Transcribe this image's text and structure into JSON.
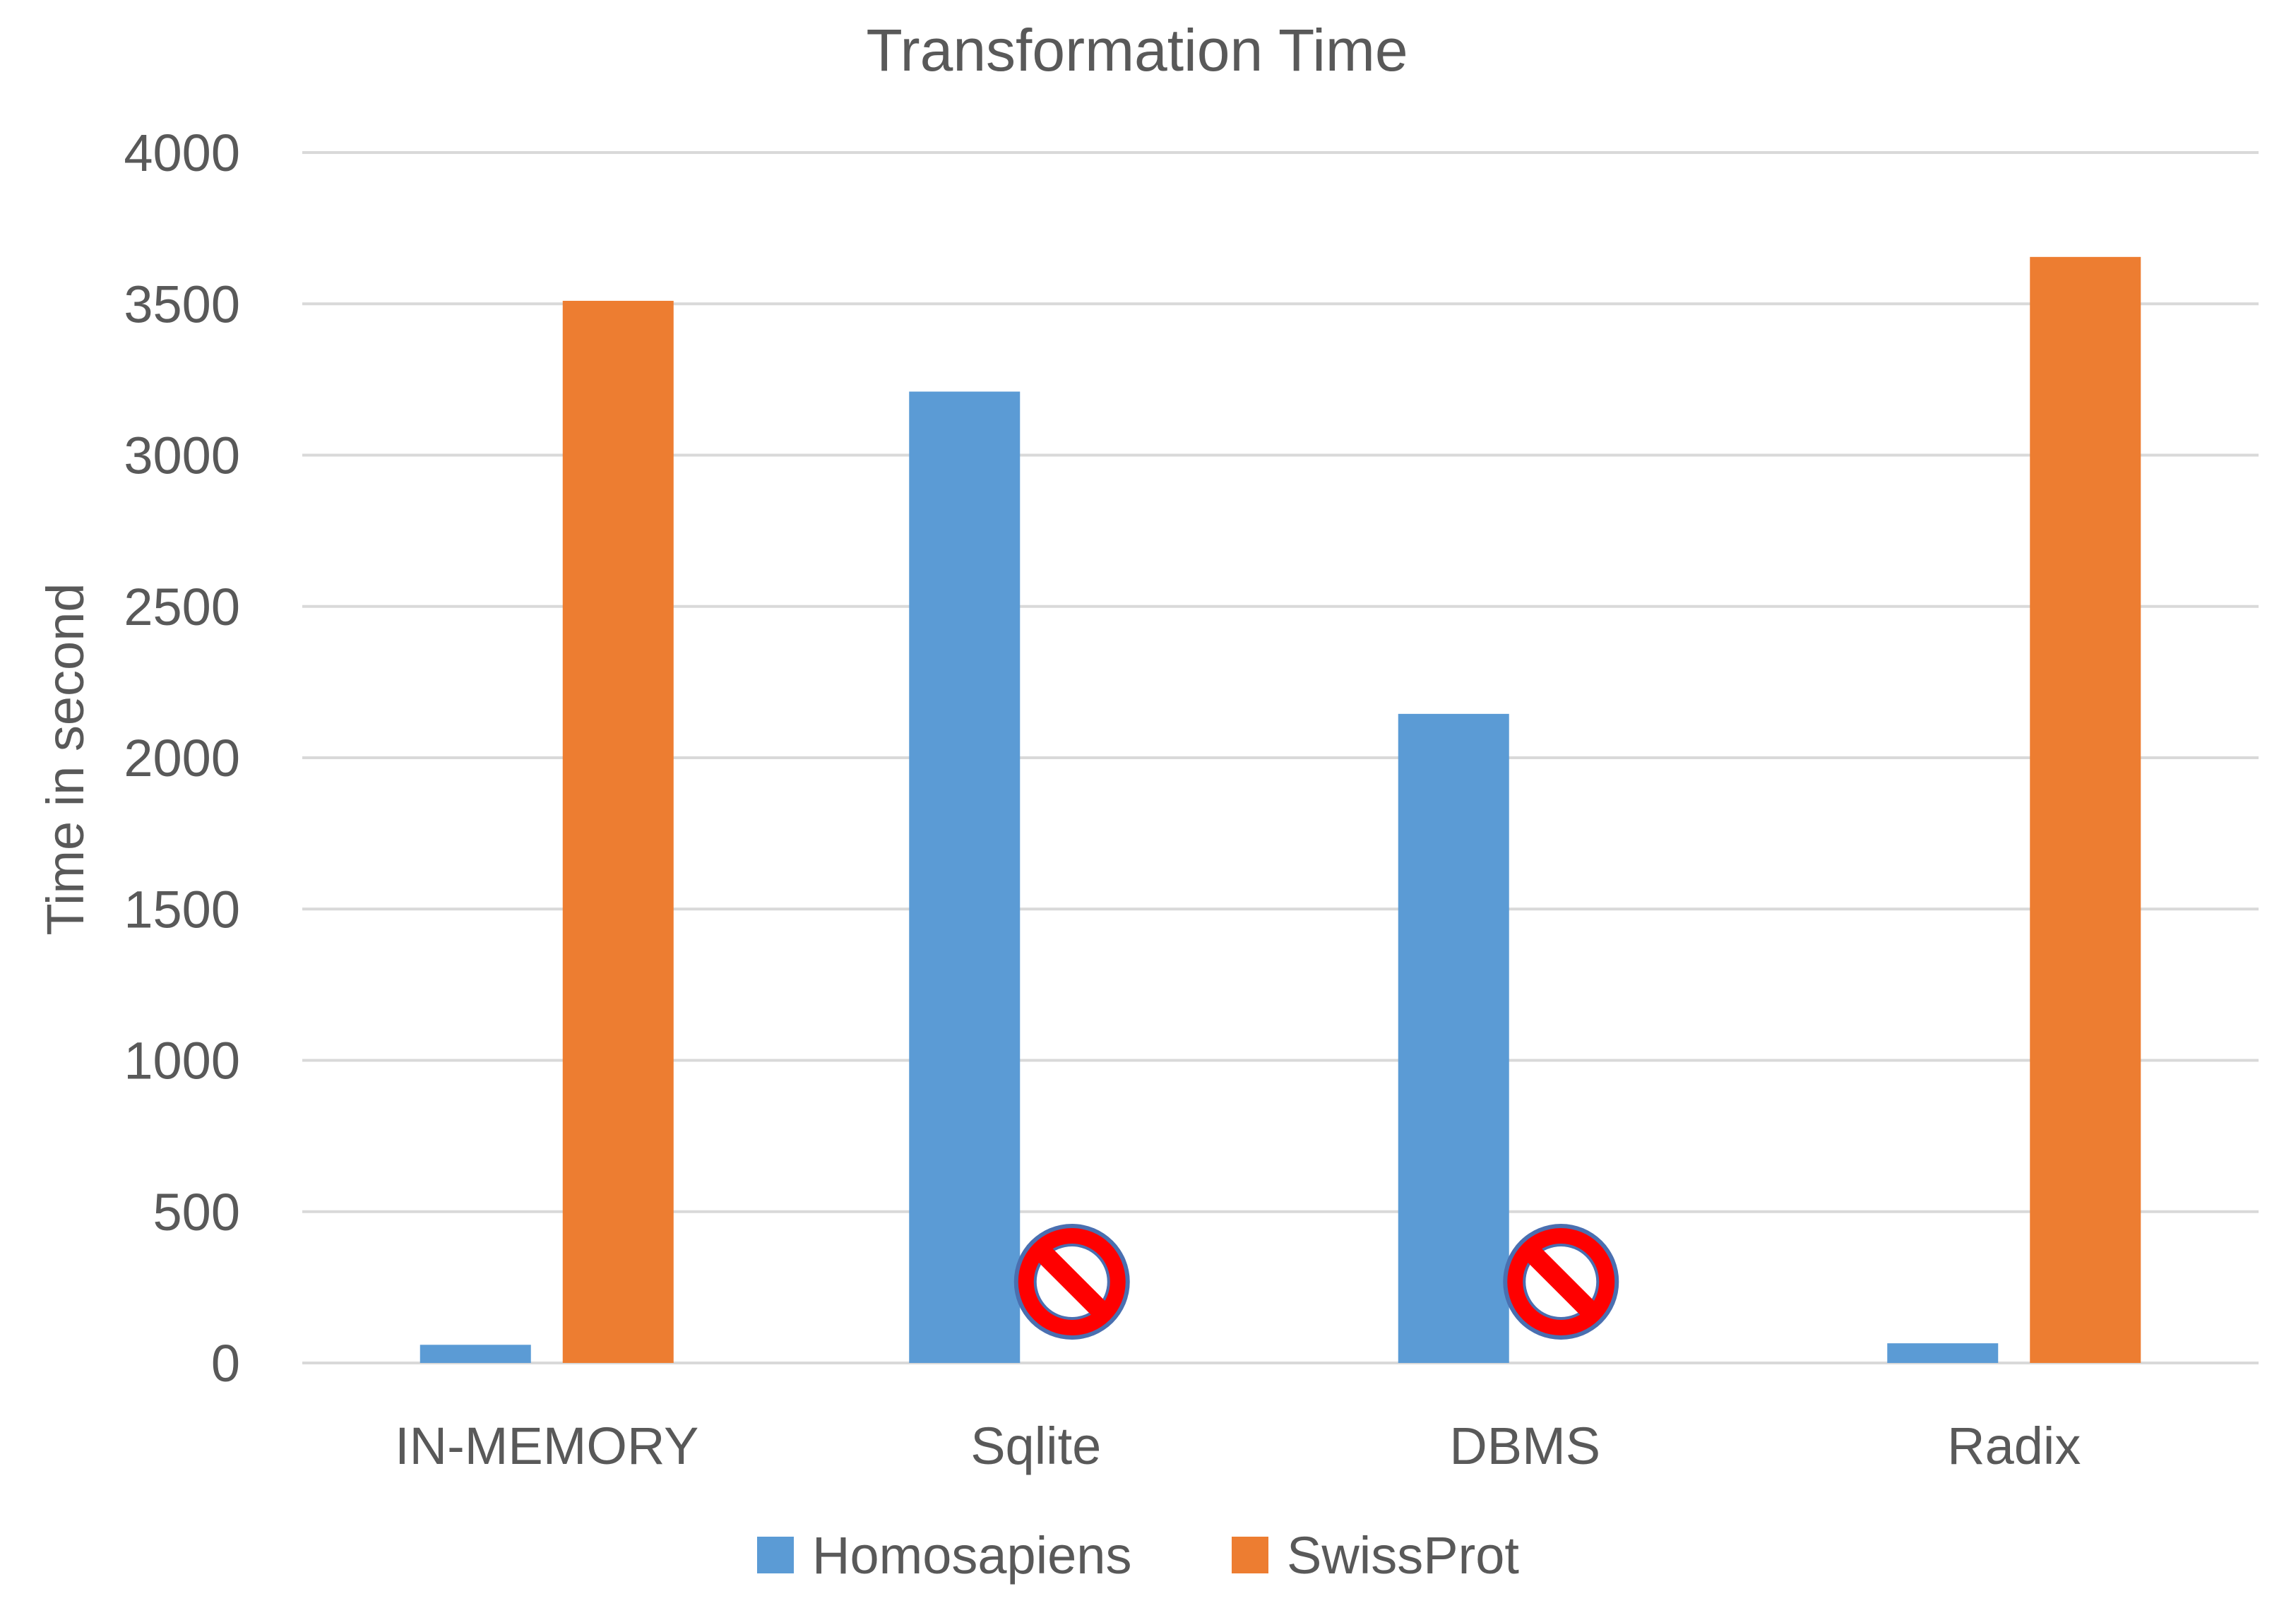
{
  "chart_data": {
    "type": "bar",
    "title": "Transformation Time",
    "xlabel": "",
    "ylabel": "Time in second",
    "ylim": [
      0,
      4000
    ],
    "yticks": [
      0,
      500,
      1000,
      1500,
      2000,
      2500,
      3000,
      3500,
      4000
    ],
    "categories": [
      "IN-MEMORY",
      "Sqlite",
      "DBMS",
      "Radix"
    ],
    "series": [
      {
        "name": "Homosapiens",
        "color": "#5b9bd5",
        "values": [
          60,
          3210,
          2145,
          65
        ]
      },
      {
        "name": "SwissProt",
        "color": "#ed7d31",
        "values": [
          3510,
          null,
          null,
          3655
        ]
      }
    ],
    "missing_markers": [
      {
        "category": "Sqlite",
        "series": "SwissProt",
        "icon": "prohibited-icon"
      },
      {
        "category": "DBMS",
        "series": "SwissProt",
        "icon": "prohibited-icon"
      }
    ],
    "grid": true,
    "legend": "bottom-center"
  }
}
